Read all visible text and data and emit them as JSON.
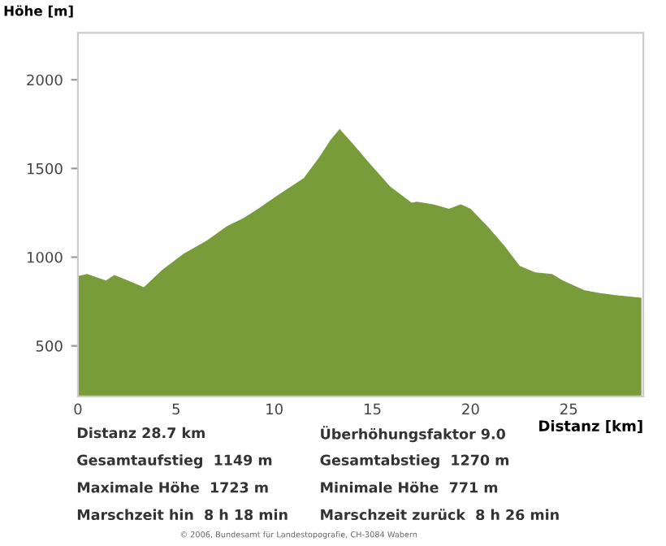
{
  "chart_data": {
    "type": "area",
    "ylabel": "Höhe [m]",
    "xlabel": "Distanz [km]",
    "xlim": [
      0,
      28.8
    ],
    "xticks": [
      0,
      5,
      10,
      15,
      20,
      25
    ],
    "ylim": [
      215,
      2265
    ],
    "yticks": [
      500,
      1000,
      1500,
      2000
    ],
    "grid": false,
    "series": [
      {
        "color": "#789c3a",
        "x": [
          0,
          0.47,
          1.43,
          1.85,
          2.4,
          3.36,
          4.3,
          5.4,
          6.5,
          7.6,
          8.45,
          9.3,
          10.1,
          11.5,
          12.3,
          12.85,
          13.33,
          13.97,
          14.8,
          15.9,
          17.0,
          17.27,
          18.1,
          18.9,
          19.5,
          20.0,
          20.85,
          21.7,
          22.5,
          23.3,
          24.15,
          24.7,
          25.8,
          26.6,
          27.7,
          28.7
        ],
        "values": [
          893,
          905,
          868,
          899,
          875,
          831,
          929,
          1021,
          1089,
          1175,
          1221,
          1282,
          1344,
          1445,
          1564,
          1658,
          1723,
          1643,
          1536,
          1399,
          1307,
          1313,
          1298,
          1273,
          1298,
          1273,
          1175,
          1068,
          951,
          914,
          905,
          868,
          813,
          797,
          782,
          771
        ]
      }
    ],
    "annotations": [
      "Distanz 28.7 km",
      "Überhöhungsfaktor 9.0",
      "Gesamtaufstieg  1149 m",
      "Gesamtabstieg  1270 m",
      "Maximale Höhe  1723 m",
      "Minimale Höhe  771 m",
      "Marschzeit hin  8 h 18 min",
      "Marschzeit zurück  8 h 26 min",
      "© 2006, Bundesamt für Landestopografie, CH-3084 Wabern"
    ]
  }
}
